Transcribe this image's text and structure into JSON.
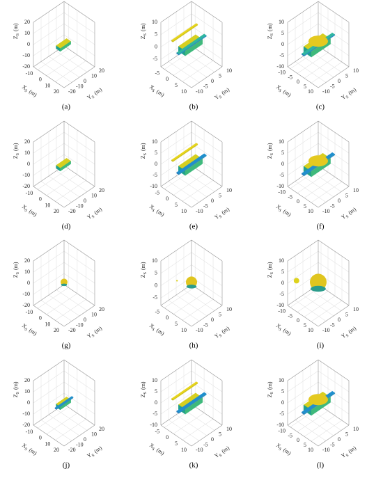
{
  "axes": {
    "x": {
      "symbol": "X",
      "subscript": "S",
      "unit": "(m)"
    },
    "y": {
      "symbol": "Y",
      "subscript": "S",
      "unit": "(m)"
    },
    "z": {
      "symbol": "Z",
      "subscript": "S",
      "unit": "(m)"
    }
  },
  "panels": [
    {
      "label": "(a)",
      "xlim": [
        -15,
        20
      ],
      "ylim": [
        -20,
        20
      ],
      "zlim": [
        -20,
        20
      ],
      "xticks": [
        -10,
        0,
        10,
        20
      ],
      "yticks": [
        -20,
        -10,
        0,
        10,
        20
      ],
      "zticks": [
        -20,
        -10,
        0,
        10,
        20
      ]
    },
    {
      "label": "(b)",
      "xlim": [
        -7,
        10
      ],
      "ylim": [
        -10,
        10
      ],
      "zlim": [
        -8,
        10
      ],
      "xticks": [
        -5,
        0,
        5,
        10
      ],
      "yticks": [
        -10,
        -5,
        0,
        5,
        10
      ],
      "zticks": [
        -5,
        0,
        5,
        10
      ]
    },
    {
      "label": "(c)",
      "xlim": [
        -12,
        10
      ],
      "ylim": [
        -10,
        10
      ],
      "zlim": [
        -10,
        10
      ],
      "xticks": [
        -10,
        -5,
        0,
        5,
        10
      ],
      "yticks": [
        -10,
        -5,
        0,
        5,
        10
      ],
      "zticks": [
        -10,
        -5,
        0,
        5,
        10
      ]
    },
    {
      "label": "(d)",
      "xlim": [
        -15,
        20
      ],
      "ylim": [
        -20,
        20
      ],
      "zlim": [
        -20,
        20
      ],
      "xticks": [
        -10,
        0,
        10,
        20
      ],
      "yticks": [
        -20,
        -10,
        0,
        10,
        20
      ],
      "zticks": [
        -20,
        -10,
        0,
        10,
        20
      ]
    },
    {
      "label": "(e)",
      "xlim": [
        -7,
        10
      ],
      "ylim": [
        -10,
        10
      ],
      "zlim": [
        -10,
        10
      ],
      "xticks": [
        -5,
        0,
        5,
        10
      ],
      "yticks": [
        -10,
        -5,
        0,
        5,
        10
      ],
      "zticks": [
        -10,
        -5,
        0,
        5,
        10
      ]
    },
    {
      "label": "(f)",
      "xlim": [
        -12,
        10
      ],
      "ylim": [
        -10,
        10
      ],
      "zlim": [
        -10,
        10
      ],
      "xticks": [
        -10,
        -5,
        0,
        5,
        10
      ],
      "yticks": [
        -10,
        -5,
        0,
        5,
        10
      ],
      "zticks": [
        -10,
        -5,
        0,
        5,
        10
      ]
    },
    {
      "label": "(g)",
      "xlim": [
        -15,
        20
      ],
      "ylim": [
        -20,
        20
      ],
      "zlim": [
        -20,
        20
      ],
      "xticks": [
        -10,
        0,
        10,
        20
      ],
      "yticks": [
        -20,
        -10,
        0,
        10,
        20
      ],
      "zticks": [
        -20,
        -10,
        0,
        10,
        20
      ]
    },
    {
      "label": "(h)",
      "xlim": [
        -7,
        10
      ],
      "ylim": [
        -10,
        10
      ],
      "zlim": [
        -8,
        10
      ],
      "xticks": [
        -5,
        0,
        5,
        10
      ],
      "yticks": [
        -10,
        -5,
        0,
        5,
        10
      ],
      "zticks": [
        -5,
        0,
        5,
        10
      ]
    },
    {
      "label": "(i)",
      "xlim": [
        -12,
        10
      ],
      "ylim": [
        -10,
        10
      ],
      "zlim": [
        -10,
        10
      ],
      "xticks": [
        -10,
        -5,
        0,
        5,
        10
      ],
      "yticks": [
        -10,
        -5,
        0,
        5,
        10
      ],
      "zticks": [
        -10,
        -5,
        0,
        5,
        10
      ]
    },
    {
      "label": "(j)",
      "xlim": [
        -15,
        20
      ],
      "ylim": [
        -20,
        20
      ],
      "zlim": [
        -20,
        20
      ],
      "xticks": [
        -10,
        0,
        10,
        20
      ],
      "yticks": [
        -20,
        -10,
        0,
        10,
        20
      ],
      "zticks": [
        -20,
        -10,
        0,
        10,
        20
      ]
    },
    {
      "label": "(k)",
      "xlim": [
        -7,
        10
      ],
      "ylim": [
        -10,
        10
      ],
      "zlim": [
        -10,
        10
      ],
      "xticks": [
        -5,
        0,
        5,
        10
      ],
      "yticks": [
        -10,
        -5,
        0,
        5,
        10
      ],
      "zticks": [
        -10,
        -5,
        0,
        5,
        10
      ]
    },
    {
      "label": "(l)",
      "xlim": [
        -12,
        10
      ],
      "ylim": [
        -10,
        10
      ],
      "zlim": [
        -10,
        10
      ],
      "xticks": [
        -10,
        -5,
        0,
        5,
        10
      ],
      "yticks": [
        -10,
        -5,
        0,
        5,
        10
      ],
      "zticks": [
        -10,
        -5,
        0,
        5,
        10
      ]
    }
  ]
}
